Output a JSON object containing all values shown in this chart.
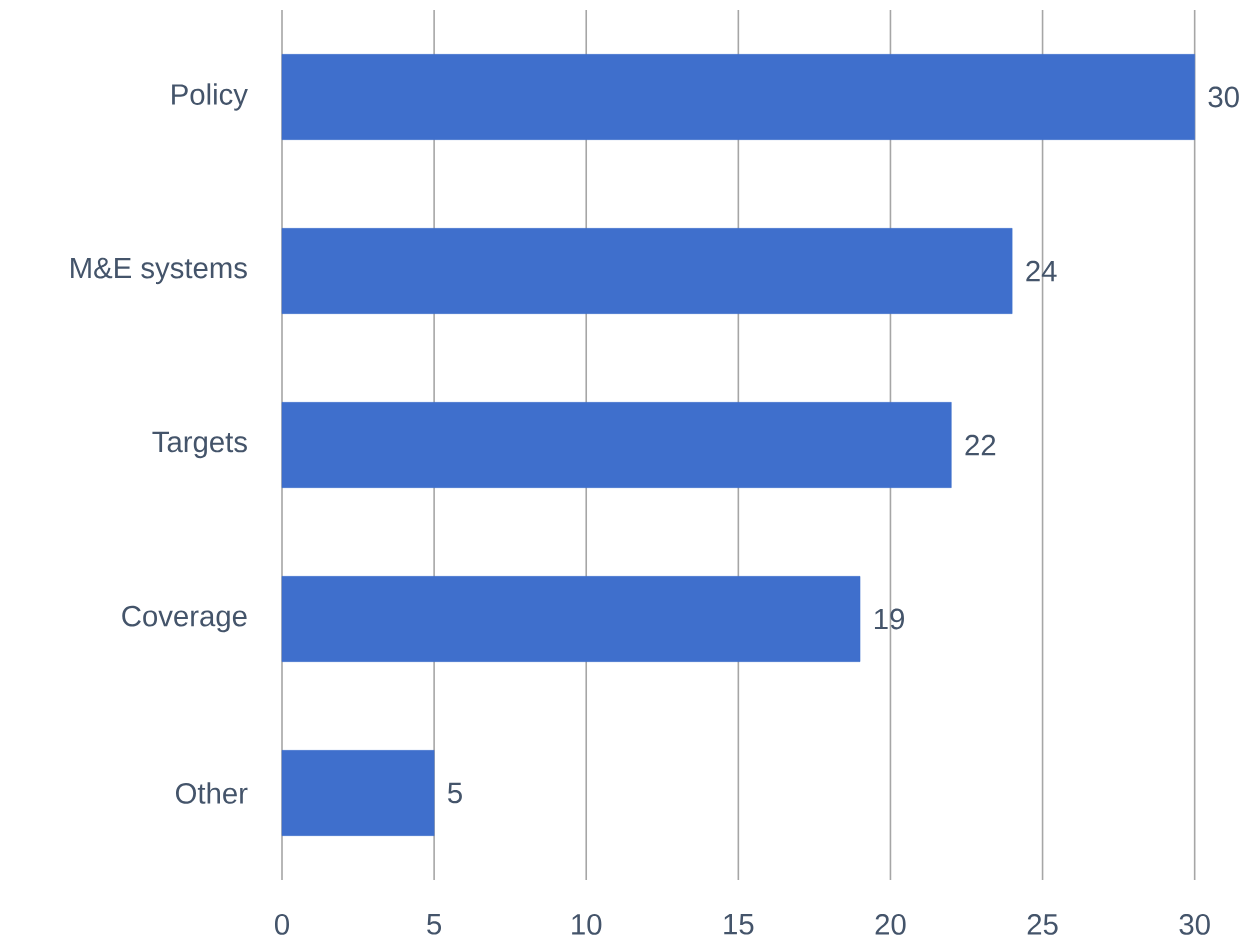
{
  "chart_data": {
    "type": "bar",
    "orientation": "horizontal",
    "categories": [
      "Policy",
      "M&E systems",
      "Targets",
      "Coverage",
      "Other"
    ],
    "values": [
      30,
      24,
      22,
      19,
      5
    ],
    "color": "#3f6fcc",
    "xlim": [
      0,
      30
    ],
    "xticks": [
      0,
      5,
      10,
      15,
      20,
      25,
      30
    ],
    "grid": "x",
    "data_labels": true
  }
}
